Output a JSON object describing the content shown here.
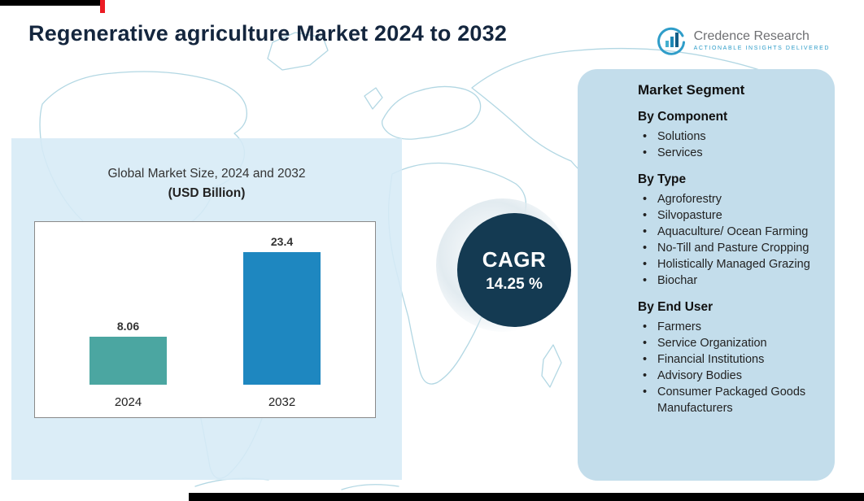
{
  "page": {
    "title": "Regenerative agriculture Market 2024 to 2032"
  },
  "logo": {
    "name": "Credence Research",
    "tagline": "Actionable Insights Delivered"
  },
  "market_chart": {
    "title_line1": "Global Market Size, 2024 and 2032",
    "title_line2": "(USD Billion)"
  },
  "chart_data": {
    "type": "bar",
    "title": "Global Market Size, 2024 and 2032 (USD Billion)",
    "categories": [
      "2024",
      "2032"
    ],
    "values": [
      8.06,
      23.4
    ],
    "value_labels": [
      "8.06",
      "23.4"
    ],
    "ylim": [
      0,
      25
    ],
    "colors": [
      "#4ba6a1",
      "#1e87c0"
    ],
    "grid": false,
    "legend": false
  },
  "cagr": {
    "label": "CAGR",
    "value": "14.25 %"
  },
  "segments": {
    "heading": "Market Segment",
    "groups": [
      {
        "title": "By Component",
        "items": [
          "Solutions",
          "Services"
        ]
      },
      {
        "title": "By Type",
        "items": [
          "Agroforestry",
          "Silvopasture",
          "Aquaculture/ Ocean Farming",
          "No-Till and Pasture Cropping",
          "Holistically Managed Grazing",
          "Biochar"
        ]
      },
      {
        "title": "By End User",
        "items": [
          "Farmers",
          "Service Organization",
          "Financial Institutions",
          "Advisory Bodies",
          "Consumer Packaged Goods Manufacturers"
        ]
      }
    ]
  },
  "theme": {
    "title_color": "#14263e",
    "panel_blue": "#d6ebf6",
    "segment_panel_blue": "#c3ddeb",
    "cagr_circle": "#143a52",
    "map_line": "#aed5e2",
    "accent_red": "#ec1c24"
  }
}
